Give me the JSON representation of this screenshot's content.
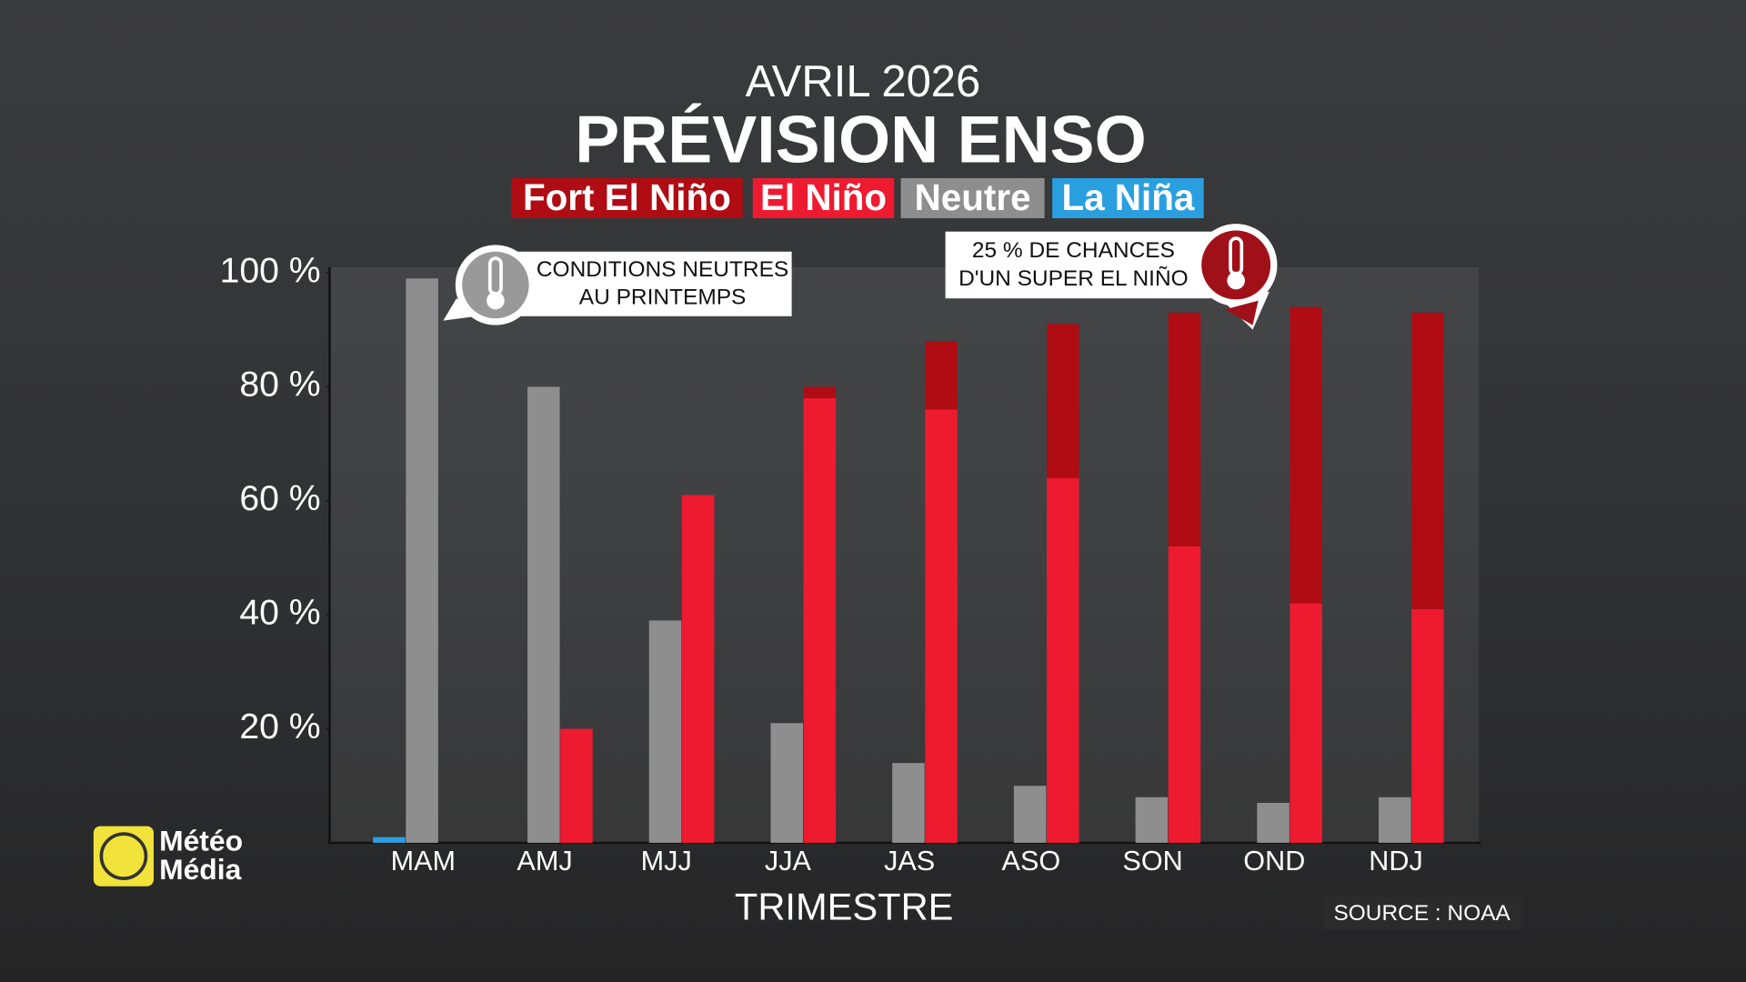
{
  "chart_data": {
    "type": "bar",
    "subtitle": "AVRIL 2026",
    "title": "PRÉVISION ENSO",
    "categories": [
      "MAM",
      "AMJ",
      "MJJ",
      "JJA",
      "JAS",
      "ASO",
      "SON",
      "OND",
      "NDJ"
    ],
    "series": [
      {
        "name": "Fort El Niño",
        "color": "#b00c14",
        "values": [
          0,
          0,
          0,
          2,
          12,
          27,
          41,
          52,
          52
        ]
      },
      {
        "name": "El Niño",
        "color": "#ee1a30",
        "values": [
          0,
          20,
          61,
          78,
          76,
          64,
          52,
          42,
          41
        ]
      },
      {
        "name": "Neutre",
        "color": "#8e8e8e",
        "values": [
          99,
          80,
          39,
          21,
          14,
          10,
          8,
          7,
          8
        ]
      },
      {
        "name": "La Niña",
        "color": "#2a9fe0",
        "values": [
          1,
          0,
          0,
          0,
          0,
          0,
          0,
          0,
          0
        ]
      }
    ],
    "xlabel": "TRIMESTRE",
    "ylim": [
      0,
      100
    ],
    "yticks": [
      {
        "value": 20,
        "label": "20 %"
      },
      {
        "value": 40,
        "label": "40 %"
      },
      {
        "value": 60,
        "label": "60 %"
      },
      {
        "value": 80,
        "label": "80 %"
      },
      {
        "value": 100,
        "label": "100 %"
      }
    ],
    "annotations": [
      [
        "CONDITIONS NEUTRES",
        "AU PRINTEMPS"
      ],
      [
        "25 % DE CHANCES",
        "D'UN SUPER EL NIÑO"
      ]
    ],
    "source": "SOURCE : NOAA",
    "logo": [
      "Météo",
      "Média"
    ]
  }
}
